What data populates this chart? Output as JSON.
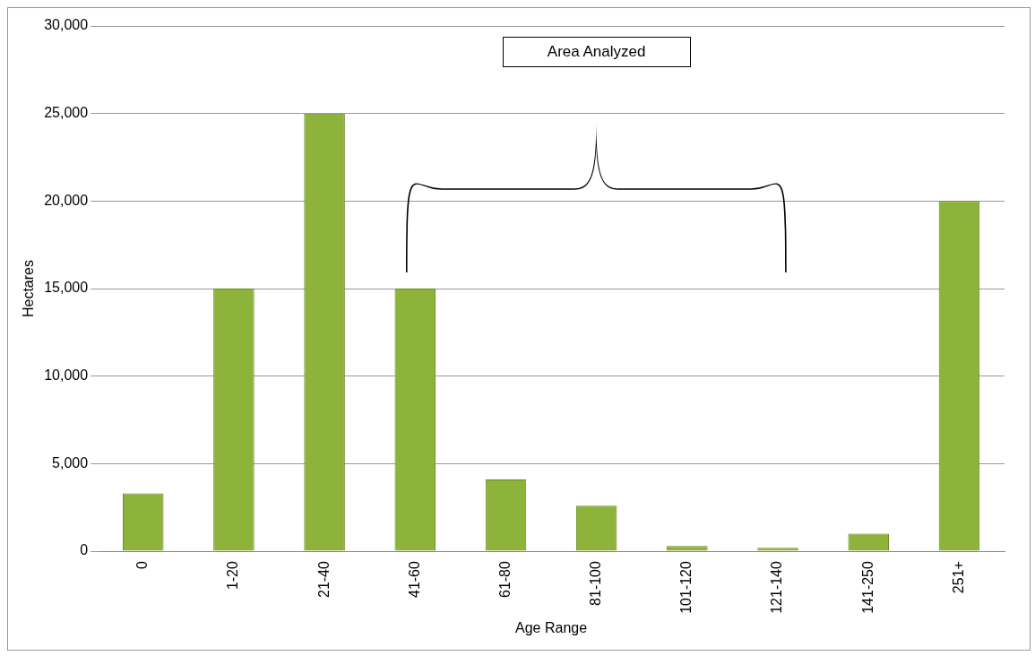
{
  "chart_data": {
    "type": "bar",
    "xlabel": "Age Range",
    "ylabel": "Hectares",
    "categories": [
      "0",
      "1-20",
      "21-40",
      "41-60",
      "61-80",
      "81-100",
      "101-120",
      "121-140",
      "141-250",
      "251+"
    ],
    "values": [
      3300,
      15000,
      25000,
      15000,
      4100,
      2600,
      300,
      200,
      1000,
      20000
    ],
    "color": "#8db33a",
    "ylim": [
      0,
      30000
    ],
    "yticks": [
      {
        "value": 0,
        "label": "0"
      },
      {
        "value": 5000,
        "label": "5,000"
      },
      {
        "value": 10000,
        "label": "10,000"
      },
      {
        "value": 15000,
        "label": "15,000"
      },
      {
        "value": 20000,
        "label": "20,000"
      },
      {
        "value": 25000,
        "label": "25,000"
      },
      {
        "value": 30000,
        "label": "30,000"
      }
    ],
    "grid": "y",
    "legend": false,
    "annotations": [
      "Area Analyzed"
    ]
  }
}
